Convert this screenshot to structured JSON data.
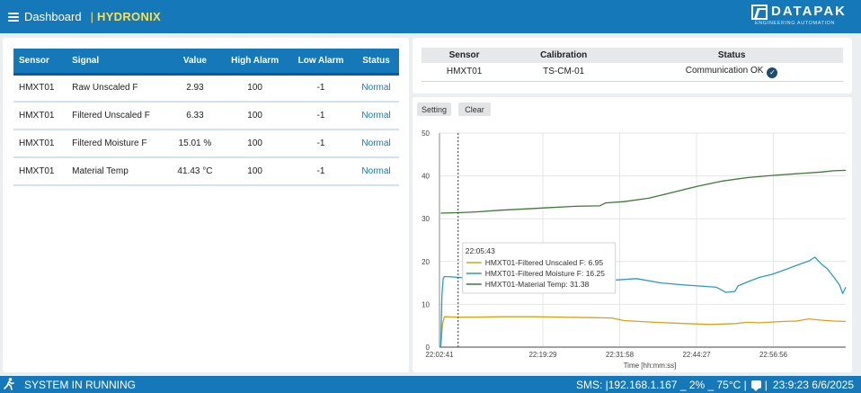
{
  "header": {
    "title": "Dashboard",
    "separator": "|",
    "brand": "HYDRONIX",
    "logo_text": "DATAPAK",
    "logo_tagline": "ENGINEERING AUTOMATION"
  },
  "sensor_table": {
    "headers": [
      "Sensor",
      "Signal",
      "Value",
      "High Alarm",
      "Low Alarm",
      "Status"
    ],
    "rows": [
      {
        "sensor": "HMXT01",
        "signal": "Raw Unscaled F",
        "value": "2.93",
        "high": "100",
        "low": "-1",
        "status": "Normal"
      },
      {
        "sensor": "HMXT01",
        "signal": "Filtered Unscaled F",
        "value": "6.33",
        "high": "100",
        "low": "-1",
        "status": "Normal"
      },
      {
        "sensor": "HMXT01",
        "signal": "Filtered Moisture F",
        "value": "15.01 %",
        "high": "100",
        "low": "-1",
        "status": "Normal"
      },
      {
        "sensor": "HMXT01",
        "signal": "Material Temp",
        "value": "41.43 °C",
        "high": "100",
        "low": "-1",
        "status": "Normal"
      }
    ]
  },
  "calibration": {
    "headers": [
      "Sensor",
      "Calibration",
      "Status"
    ],
    "row": {
      "sensor": "HMXT01",
      "calibration": "TS-CM-01",
      "status": "Communication OK",
      "status_icon": "check-circle-icon"
    }
  },
  "chart_controls": {
    "setting": "Setting",
    "clear": "Clear"
  },
  "chart_data": {
    "type": "line",
    "xlabel": "Time [hh:mm:ss]",
    "x_ticks": [
      "22:02:41",
      "22:19:29",
      "22:31:58",
      "22:44:27",
      "22:56:56"
    ],
    "x_tick_minutes": [
      0,
      16.8,
      29.28,
      41.77,
      54.25
    ],
    "x_range_minutes": [
      0,
      66
    ],
    "y_ticks": [
      0,
      10,
      20,
      30,
      40,
      50
    ],
    "ylim": [
      0,
      50
    ],
    "grid": true,
    "tooltip": {
      "time": "22:05:43",
      "x_minutes": 3.03,
      "entries": [
        "HMXT01-Filtered Unscaled F: 6.95",
        "HMXT01-Filtered Moisture F: 16.25",
        "HMXT01-Material Temp: 31.38"
      ]
    },
    "series": [
      {
        "name": "HMXT01-Filtered Unscaled F",
        "color": "#d9a21b",
        "points": [
          [
            0.2,
            0
          ],
          [
            0.5,
            5.5
          ],
          [
            0.8,
            7.1
          ],
          [
            3,
            7.0
          ],
          [
            6,
            7.0
          ],
          [
            10,
            7.1
          ],
          [
            15,
            7.1
          ],
          [
            20,
            7.0
          ],
          [
            25,
            6.9
          ],
          [
            28,
            6.8
          ],
          [
            30,
            6.2
          ],
          [
            35,
            5.8
          ],
          [
            40,
            5.5
          ],
          [
            44,
            5.3
          ],
          [
            48,
            5.5
          ],
          [
            50,
            5.8
          ],
          [
            52,
            5.7
          ],
          [
            56,
            6.0
          ],
          [
            58,
            6.1
          ],
          [
            60,
            6.6
          ],
          [
            62,
            6.3
          ],
          [
            64,
            6.1
          ],
          [
            66,
            6.0
          ]
        ]
      },
      {
        "name": "HMXT01-Filtered Moisture F",
        "color": "#2a9cc4",
        "points": [
          [
            0.2,
            0
          ],
          [
            0.4,
            12
          ],
          [
            0.6,
            16
          ],
          [
            0.8,
            16.5
          ],
          [
            2,
            16.4
          ],
          [
            4,
            16.2
          ],
          [
            7,
            16.0
          ],
          [
            10,
            16.3
          ],
          [
            13,
            16.6
          ],
          [
            16,
            16.3
          ],
          [
            20,
            15.8
          ],
          [
            24,
            15.2
          ],
          [
            28,
            15.6
          ],
          [
            32,
            16.0
          ],
          [
            36,
            15.0
          ],
          [
            40,
            14.5
          ],
          [
            43,
            14.2
          ],
          [
            45,
            14.0
          ],
          [
            46.5,
            12.8
          ],
          [
            48,
            13.0
          ],
          [
            48.5,
            14.3
          ],
          [
            50,
            15.2
          ],
          [
            52,
            16.3
          ],
          [
            54,
            17.0
          ],
          [
            56,
            18.0
          ],
          [
            58,
            19.1
          ],
          [
            60,
            20.1
          ],
          [
            61,
            21.0
          ],
          [
            62,
            19.5
          ],
          [
            63,
            18.3
          ],
          [
            64,
            16.5
          ],
          [
            65,
            14.5
          ],
          [
            65.5,
            12.5
          ],
          [
            66,
            14.0
          ]
        ]
      },
      {
        "name": "HMXT01-Material Temp",
        "color": "#3d7a35",
        "points": [
          [
            0.2,
            31.3
          ],
          [
            3,
            31.4
          ],
          [
            6,
            31.6
          ],
          [
            10,
            32.0
          ],
          [
            14,
            32.3
          ],
          [
            18,
            32.6
          ],
          [
            22,
            32.9
          ],
          [
            26,
            33.0
          ],
          [
            27,
            33.7
          ],
          [
            30,
            34.0
          ],
          [
            34,
            34.8
          ],
          [
            38,
            36.2
          ],
          [
            42,
            37.6
          ],
          [
            46,
            38.8
          ],
          [
            50,
            39.6
          ],
          [
            54,
            40.1
          ],
          [
            58,
            40.5
          ],
          [
            62,
            40.9
          ],
          [
            64,
            41.2
          ],
          [
            66,
            41.3
          ]
        ]
      }
    ]
  },
  "footer": {
    "status": "SYSTEM IN RUNNING",
    "sms": "SMS: |192.168.1.167 _ 2% _ 75°C |",
    "datetime": "23:9:23 6/6/2025"
  }
}
